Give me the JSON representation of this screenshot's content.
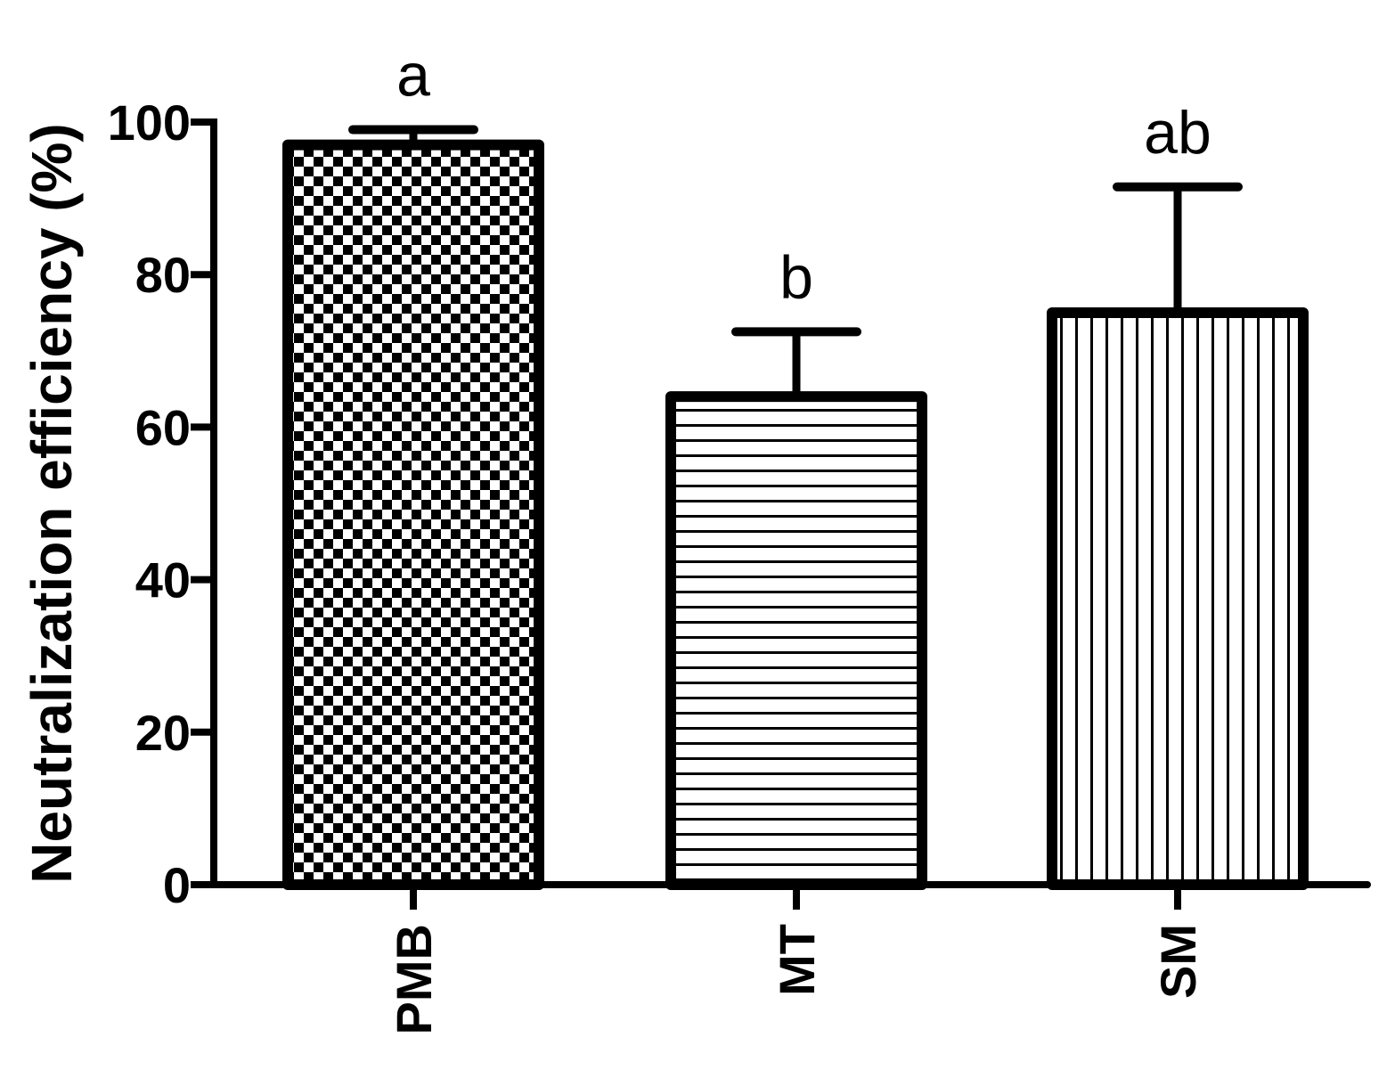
{
  "chart_data": {
    "type": "bar",
    "title": "",
    "xlabel": "",
    "ylabel": "Neutralization efficiency (%)",
    "ylim": [
      0,
      100
    ],
    "yticks": [
      0,
      20,
      40,
      60,
      80,
      100
    ],
    "categories": [
      "PMB",
      "MT",
      "SM"
    ],
    "values": [
      97,
      64,
      75
    ],
    "error_upper": [
      2,
      8.5,
      16.5
    ],
    "significance_labels": [
      "a",
      "b",
      "ab"
    ],
    "bar_patterns": [
      "checkerboard",
      "horizontal-lines",
      "vertical-lines"
    ],
    "grid": false,
    "legend": "none",
    "colors": {
      "ink": "#000000",
      "background": "#ffffff"
    }
  }
}
